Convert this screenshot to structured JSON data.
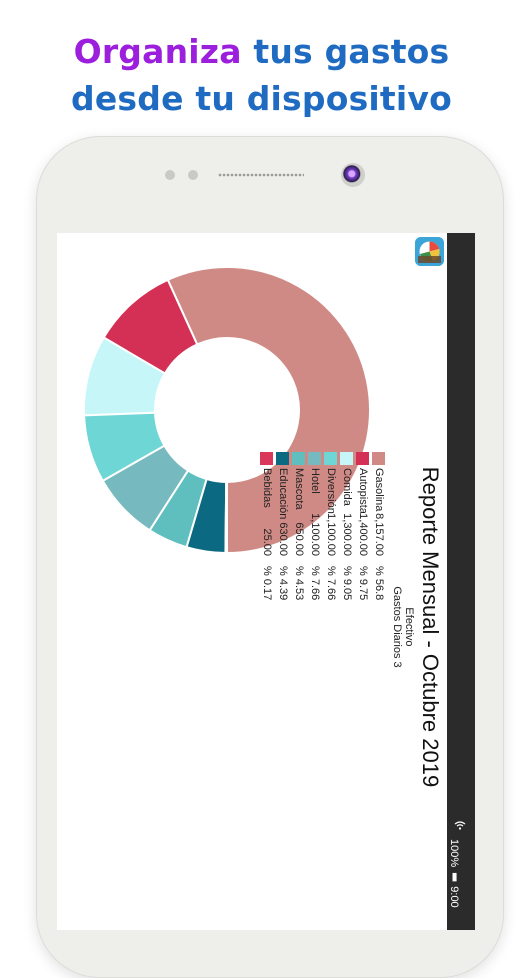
{
  "headline": {
    "accent": "Organiza",
    "line1_rest": " tus gastos",
    "line2": "desde tu dispositivo"
  },
  "status_bar": {
    "text": "100% 9:00",
    "battery": "100%",
    "time": "9:00"
  },
  "report": {
    "title": "Reporte Mensual - Octubre 2019",
    "subtitle1": "Efectivo",
    "subtitle2": "Gastos Diarios 3"
  },
  "chart_data": {
    "type": "pie",
    "hole": "donut",
    "categories": [
      "Gasolina",
      "Autopista",
      "Comida",
      "Diversión",
      "Hotel",
      "Mascota",
      "Educación",
      "Bebidas"
    ],
    "values": [
      8157.0,
      1400.0,
      1300.0,
      1100.0,
      1100.0,
      650.0,
      630.0,
      25.0
    ],
    "amounts_text": [
      "8,157.00",
      "1,400.00",
      "1,300.00",
      "1,100.00",
      "1,100.00",
      "650.00",
      "630.00",
      "25.00"
    ],
    "percent_text": [
      "% 56.8",
      "% 9.75",
      "% 9.05",
      "% 7.66",
      "% 7.66",
      "% 4.53",
      "% 4.39",
      "% 0.17"
    ],
    "colors": [
      "#d08a86",
      "#d42f55",
      "#c6f6f7",
      "#6fd6d6",
      "#76b9bf",
      "#5fbebe",
      "#0b6a82",
      "#d9385a"
    ]
  }
}
